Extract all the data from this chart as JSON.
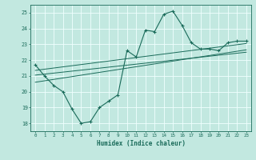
{
  "title": "",
  "xlabel": "Humidex (Indice chaleur)",
  "ylabel": "",
  "bg_color": "#c2e8e0",
  "line_color": "#1a6b5a",
  "grid_color": "#f0ffff",
  "xlim": [
    -0.5,
    23.5
  ],
  "ylim": [
    17.5,
    25.5
  ],
  "xticks": [
    0,
    1,
    2,
    3,
    4,
    5,
    6,
    7,
    8,
    9,
    10,
    11,
    12,
    13,
    14,
    15,
    16,
    17,
    18,
    19,
    20,
    21,
    22,
    23
  ],
  "yticks": [
    18,
    19,
    20,
    21,
    22,
    23,
    24,
    25
  ],
  "main_x": [
    0,
    1,
    2,
    3,
    4,
    5,
    6,
    7,
    8,
    9,
    10,
    11,
    12,
    13,
    14,
    15,
    16,
    17,
    18,
    19,
    20,
    21,
    22,
    23
  ],
  "main_y": [
    21.7,
    21.0,
    20.4,
    20.0,
    18.9,
    18.0,
    18.1,
    19.0,
    19.4,
    19.8,
    22.6,
    22.2,
    23.9,
    23.8,
    24.9,
    25.1,
    24.2,
    23.1,
    22.7,
    22.7,
    22.6,
    23.1,
    23.2,
    23.2
  ],
  "line1_x": [
    0,
    23
  ],
  "line1_y": [
    20.6,
    22.65
  ],
  "line2_x": [
    0,
    23
  ],
  "line2_y": [
    21.05,
    22.5
  ],
  "line3_x": [
    0,
    23
  ],
  "line3_y": [
    21.35,
    23.05
  ]
}
